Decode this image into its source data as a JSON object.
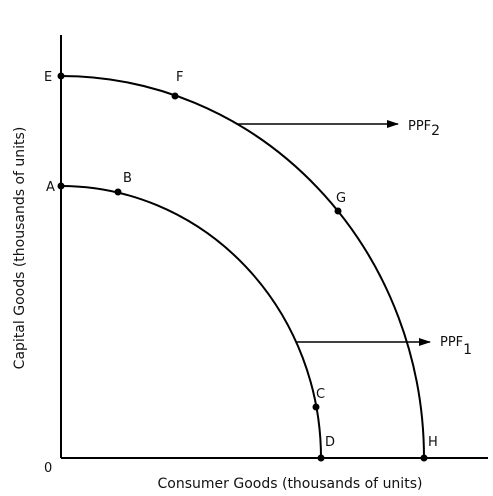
{
  "axes": {
    "x_label": "Consumer Goods (thousands of units)",
    "y_label": "Capital Goods (thousands of units)",
    "origin": "0"
  },
  "points": [
    {
      "label": "A"
    },
    {
      "label": "B"
    },
    {
      "label": "C"
    },
    {
      "label": "D"
    },
    {
      "label": "E"
    },
    {
      "label": "F"
    },
    {
      "label": "G"
    },
    {
      "label": "H"
    }
  ],
  "curves": [
    {
      "label": "PPF",
      "subscript": "1"
    },
    {
      "label": "PPF",
      "subscript": "2"
    }
  ]
}
